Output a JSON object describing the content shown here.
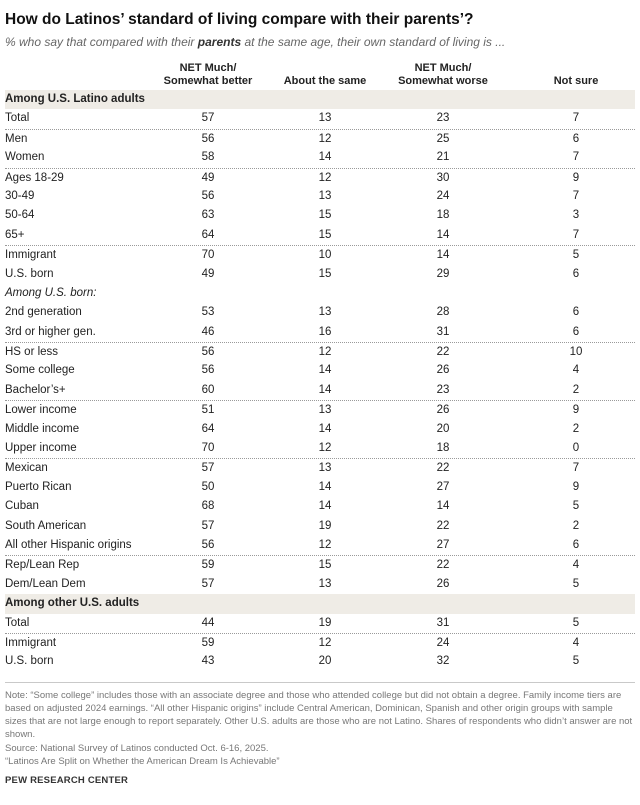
{
  "title": "How do Latinos’ standard of living compare with their parents’?",
  "subtitle_pre": "% who say that compared with their ",
  "subtitle_bold": "parents",
  "subtitle_post": " at the same age, their own standard of living is ...",
  "columns": [
    "NET Much/\nSomewhat better",
    "About the same",
    "NET Much/\nSomewhat worse",
    "Not sure"
  ],
  "columns_lines": [
    [
      "NET Much/",
      "Somewhat better"
    ],
    [
      "About the same"
    ],
    [
      "NET Much/",
      "Somewhat worse"
    ],
    [
      "Not sure"
    ]
  ],
  "chart_data": {
    "type": "table",
    "columns": [
      "NET Much/Somewhat better",
      "About the same",
      "NET Much/Somewhat worse",
      "Not sure"
    ],
    "rows": [
      {
        "kind": "section",
        "label": "Among U.S. Latino adults"
      },
      {
        "label": "Total",
        "values": [
          57,
          13,
          23,
          7
        ]
      },
      {
        "label": "Men",
        "values": [
          56,
          12,
          25,
          6
        ],
        "sep": true
      },
      {
        "label": "Women",
        "values": [
          58,
          14,
          21,
          7
        ]
      },
      {
        "label": "Ages 18-29",
        "values": [
          49,
          12,
          30,
          9
        ],
        "sep": true
      },
      {
        "label": "30-49",
        "values": [
          56,
          13,
          24,
          7
        ]
      },
      {
        "label": "50-64",
        "values": [
          63,
          15,
          18,
          3
        ]
      },
      {
        "label": "65+",
        "values": [
          64,
          15,
          14,
          7
        ]
      },
      {
        "label": "Immigrant",
        "values": [
          70,
          10,
          14,
          5
        ],
        "sep": true
      },
      {
        "label": "U.S. born",
        "values": [
          49,
          15,
          29,
          6
        ]
      },
      {
        "kind": "subhead",
        "label": "Among U.S. born:"
      },
      {
        "label": "2nd generation",
        "values": [
          53,
          13,
          28,
          6
        ]
      },
      {
        "label": "3rd or higher gen.",
        "values": [
          46,
          16,
          31,
          6
        ]
      },
      {
        "label": "HS or less",
        "values": [
          56,
          12,
          22,
          10
        ],
        "sep": true
      },
      {
        "label": "Some college",
        "values": [
          56,
          14,
          26,
          4
        ]
      },
      {
        "label": "Bachelor’s+",
        "values": [
          60,
          14,
          23,
          2
        ]
      },
      {
        "label": "Lower income",
        "values": [
          51,
          13,
          26,
          9
        ],
        "sep": true
      },
      {
        "label": "Middle income",
        "values": [
          64,
          14,
          20,
          2
        ]
      },
      {
        "label": "Upper income",
        "values": [
          70,
          12,
          18,
          0
        ]
      },
      {
        "label": "Mexican",
        "values": [
          57,
          13,
          22,
          7
        ],
        "sep": true
      },
      {
        "label": "Puerto Rican",
        "values": [
          50,
          14,
          27,
          9
        ]
      },
      {
        "label": "Cuban",
        "values": [
          68,
          14,
          14,
          5
        ]
      },
      {
        "label": "South American",
        "values": [
          57,
          19,
          22,
          2
        ]
      },
      {
        "label": "All other Hispanic origins",
        "values": [
          56,
          12,
          27,
          6
        ]
      },
      {
        "label": "Rep/Lean Rep",
        "values": [
          59,
          15,
          22,
          4
        ],
        "sep": true
      },
      {
        "label": "Dem/Lean Dem",
        "values": [
          57,
          13,
          26,
          5
        ]
      },
      {
        "kind": "section",
        "label": "Among other U.S. adults"
      },
      {
        "label": "Total",
        "values": [
          44,
          19,
          31,
          5
        ]
      },
      {
        "label": "Immigrant",
        "values": [
          59,
          12,
          24,
          4
        ],
        "sep": true
      },
      {
        "label": "U.S. born",
        "values": [
          43,
          20,
          32,
          5
        ]
      }
    ]
  },
  "notes": [
    "Note: “Some college” includes those with an associate degree and those who attended college but did not obtain a degree. Family income tiers are based on adjusted 2024 earnings. “All other Hispanic origins” include Central American, Dominican, Spanish and other origin groups with sample sizes that are not large enough to report separately. Other U.S. adults are those who are not Latino. Shares of respondents who didn’t answer are not shown.",
    "Source: National Survey of Latinos conducted Oct. 6-16, 2025.",
    "“Latinos Are Split on Whether the American Dream Is Achievable”"
  ],
  "footer": "PEW RESEARCH CENTER",
  "colors": {
    "section_bg": "#efece6",
    "text": "#222222",
    "note": "#777777"
  }
}
